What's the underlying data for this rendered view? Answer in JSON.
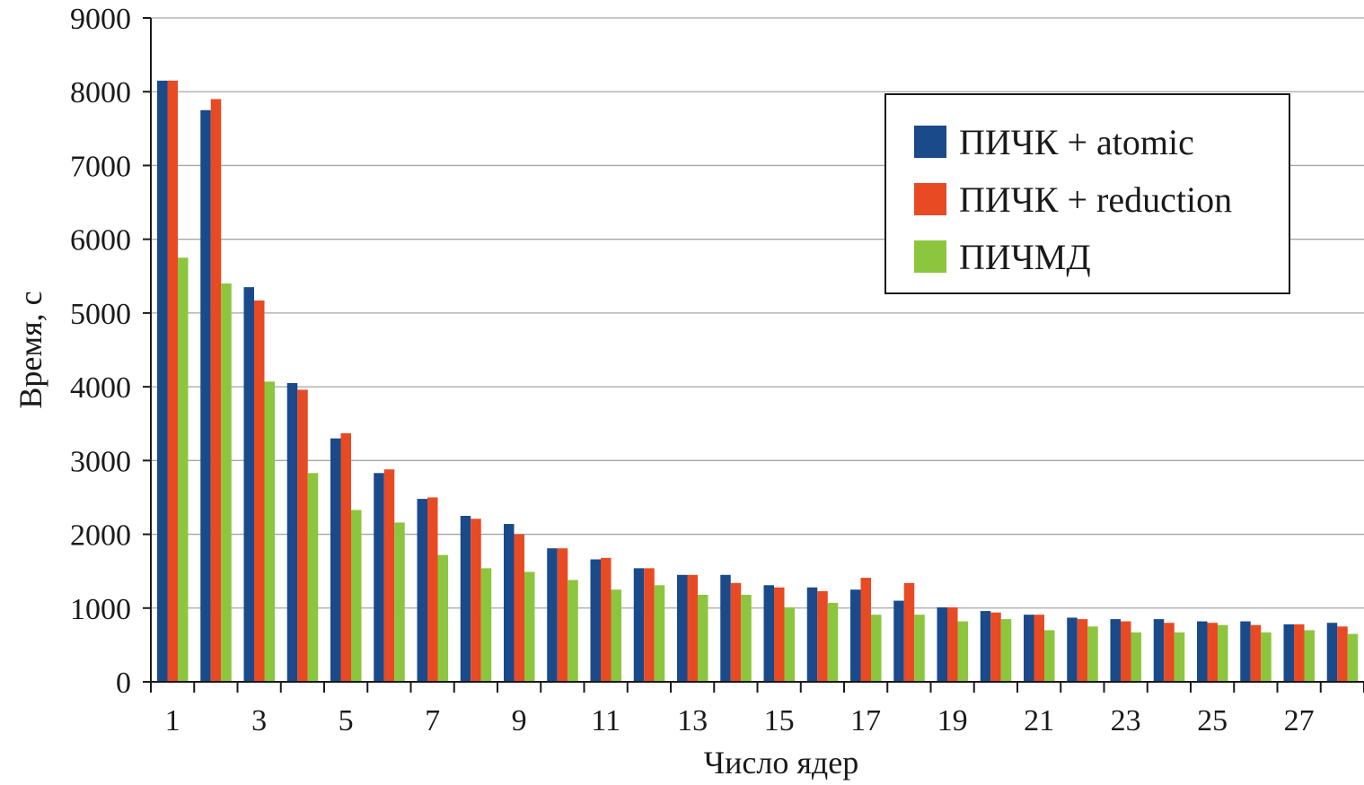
{
  "chart_data": {
    "type": "bar",
    "title": "",
    "xlabel": "Число ядер",
    "ylabel": "Время, с",
    "ylim": [
      0,
      9000
    ],
    "yticks": [
      0,
      1000,
      2000,
      3000,
      4000,
      5000,
      6000,
      7000,
      8000,
      9000
    ],
    "grid": true,
    "legend_position": "top-right",
    "categories": [
      1,
      2,
      3,
      4,
      5,
      6,
      7,
      8,
      9,
      10,
      11,
      12,
      13,
      14,
      15,
      16,
      17,
      18,
      19,
      20,
      21,
      22,
      23,
      24,
      25,
      26,
      27,
      28
    ],
    "x_tick_labels": [
      "1",
      "3",
      "5",
      "7",
      "9",
      "11",
      "13",
      "15",
      "17",
      "19",
      "21",
      "23",
      "25",
      "27"
    ],
    "series": [
      {
        "name": "ПИЧК + atomic",
        "color": "#1a4a8a",
        "values": [
          8150,
          7750,
          5350,
          4050,
          3300,
          2830,
          2480,
          2250,
          2140,
          1810,
          1660,
          1540,
          1450,
          1450,
          1310,
          1280,
          1250,
          1100,
          1010,
          960,
          910,
          870,
          850,
          850,
          820,
          820,
          780,
          800
        ]
      },
      {
        "name": "ПИЧК + reduction",
        "color": "#e84a24",
        "values": [
          8150,
          7900,
          5170,
          3960,
          3370,
          2880,
          2500,
          2210,
          2000,
          1810,
          1680,
          1540,
          1450,
          1340,
          1280,
          1230,
          1410,
          1340,
          1010,
          940,
          910,
          850,
          820,
          800,
          800,
          770,
          780,
          750
        ]
      },
      {
        "name": "ПИЧМД",
        "color": "#8cc63f",
        "values": [
          5750,
          5400,
          4070,
          2830,
          2330,
          2160,
          1720,
          1540,
          1490,
          1380,
          1250,
          1310,
          1180,
          1180,
          1010,
          1070,
          910,
          910,
          820,
          850,
          700,
          750,
          670,
          670,
          770,
          670,
          700,
          650
        ]
      }
    ]
  }
}
